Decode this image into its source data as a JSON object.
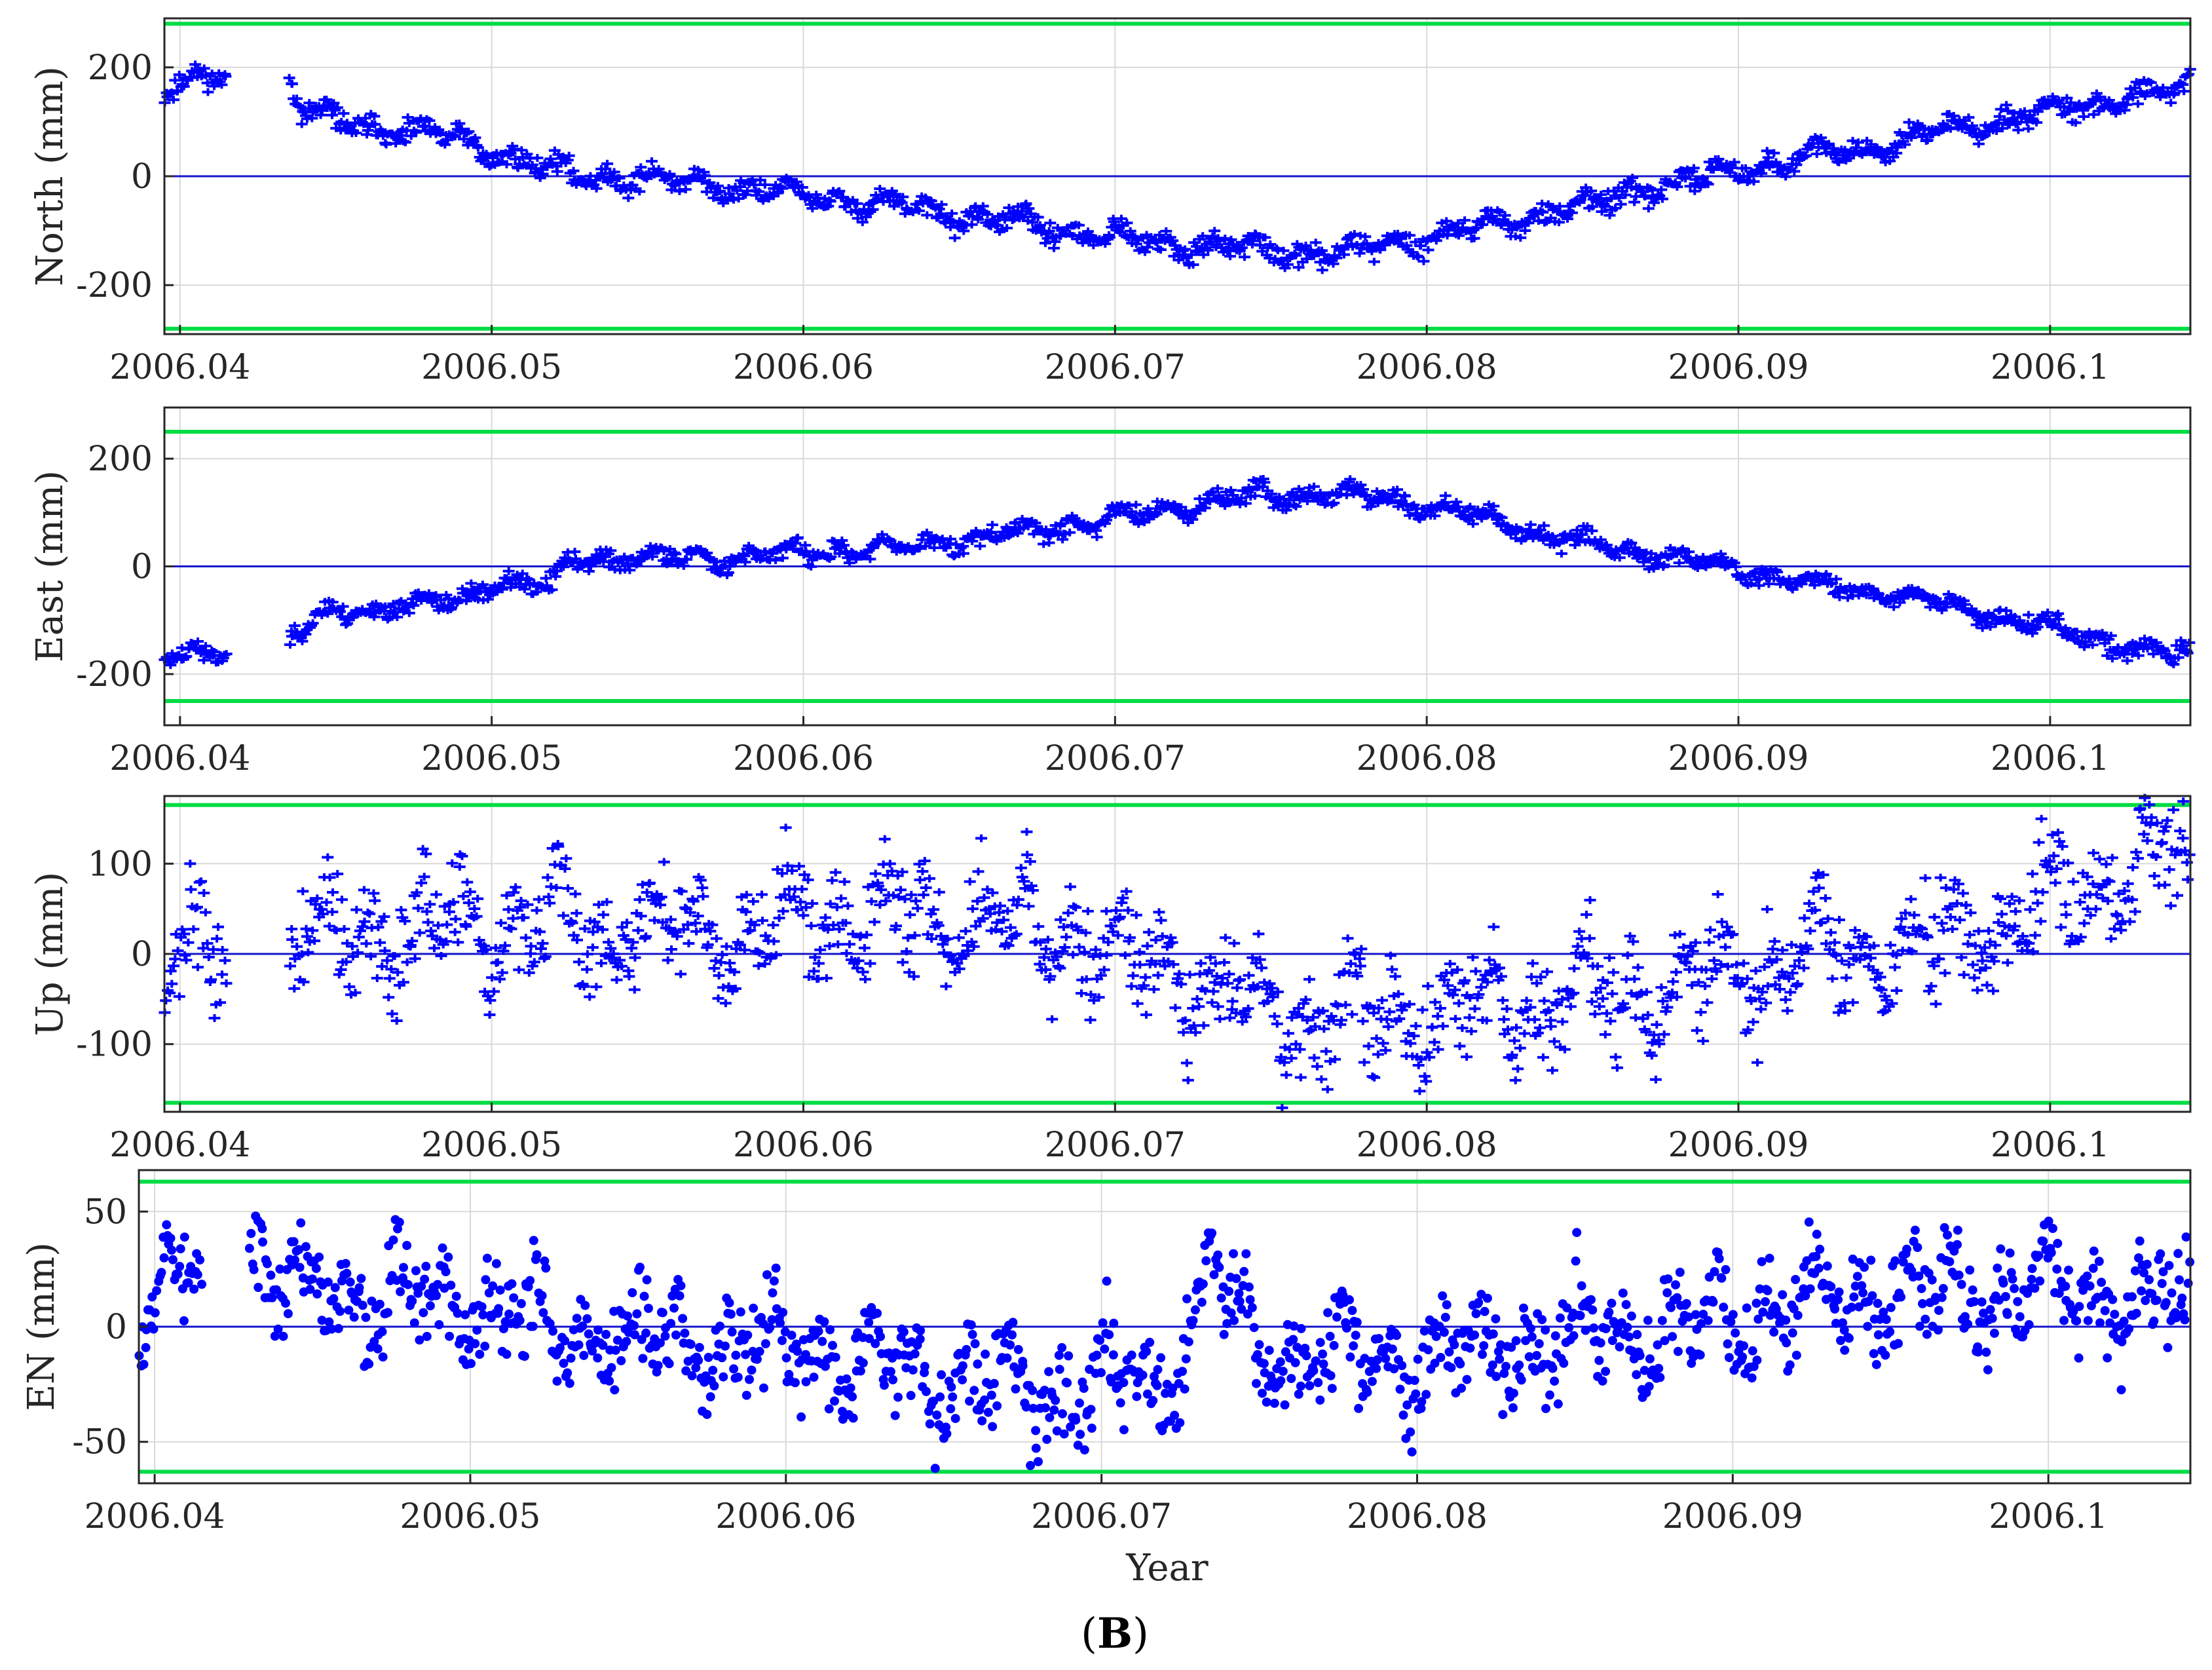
{
  "caption": {
    "open": "(",
    "letter": "B",
    "close": ")"
  },
  "colors": {
    "data": "#0000ff",
    "limit": "#00dd44",
    "zero": "#1515cc",
    "axis": "#262626",
    "grid": "#d9d9d9"
  },
  "chart_data": [
    {
      "type": "scatter",
      "title": "",
      "xlabel": "",
      "ylabel": "North (mm)",
      "xlim": [
        2006.0395,
        2006.1045
      ],
      "ylim": [
        -290,
        290
      ],
      "xticks": [
        2006.04,
        2006.05,
        2006.06,
        2006.07,
        2006.08,
        2006.09,
        2006.1
      ],
      "xtick_labels": [
        "2006.04",
        "2006.05",
        "2006.06",
        "2006.07",
        "2006.08",
        "2006.09",
        "2006.1"
      ],
      "yticks": [
        -200,
        0,
        200
      ],
      "ytick_labels": [
        "-200",
        "0",
        "200"
      ],
      "limits": [
        -280,
        280
      ],
      "zero_line": 0,
      "marker": "cross-errorbar",
      "segments": [
        [
          2006.0395,
          2006.0415
        ],
        [
          2006.0435,
          2006.1045
        ]
      ],
      "trend": [
        [
          2006.0395,
          165
        ],
        [
          2006.041,
          178
        ],
        [
          2006.0435,
          185
        ],
        [
          2006.044,
          115
        ],
        [
          2006.0455,
          98
        ],
        [
          2006.047,
          82
        ],
        [
          2006.049,
          70
        ],
        [
          2006.05,
          45
        ],
        [
          2006.0525,
          5
        ],
        [
          2006.056,
          -10
        ],
        [
          2006.06,
          -35
        ],
        [
          2006.063,
          -55
        ],
        [
          2006.067,
          -88
        ],
        [
          2006.07,
          -115
        ],
        [
          2006.0725,
          -130
        ],
        [
          2006.074,
          -128
        ],
        [
          2006.076,
          -145
        ],
        [
          2006.078,
          -132
        ],
        [
          2006.082,
          -90
        ],
        [
          2006.086,
          -40
        ],
        [
          2006.09,
          15
        ],
        [
          2006.094,
          50
        ],
        [
          2006.098,
          100
        ],
        [
          2006.102,
          140
        ],
        [
          2006.1045,
          160
        ]
      ],
      "scatter": 14,
      "seed": 11
    },
    {
      "type": "scatter",
      "title": "",
      "xlabel": "",
      "ylabel": "East (mm)",
      "xlim": [
        2006.0395,
        2006.1045
      ],
      "ylim": [
        -295,
        295
      ],
      "xticks": [
        2006.04,
        2006.05,
        2006.06,
        2006.07,
        2006.08,
        2006.09,
        2006.1
      ],
      "xtick_labels": [
        "2006.04",
        "2006.05",
        "2006.06",
        "2006.07",
        "2006.08",
        "2006.09",
        "2006.1"
      ],
      "yticks": [
        -200,
        0,
        200
      ],
      "ytick_labels": [
        "-200",
        "0",
        "200"
      ],
      "limits": [
        -250,
        250
      ],
      "zero_line": 0,
      "marker": "cross-errorbar",
      "segments": [
        [
          2006.0395,
          2006.0415
        ],
        [
          2006.0435,
          2006.1045
        ]
      ],
      "trend": [
        [
          2006.0395,
          -160
        ],
        [
          2006.041,
          -170
        ],
        [
          2006.0435,
          -130
        ],
        [
          2006.0445,
          -95
        ],
        [
          2006.047,
          -70
        ],
        [
          2006.049,
          -70
        ],
        [
          2006.05,
          -25
        ],
        [
          2006.052,
          -40
        ],
        [
          2006.0525,
          15
        ],
        [
          2006.055,
          15
        ],
        [
          2006.058,
          20
        ],
        [
          2006.06,
          25
        ],
        [
          2006.063,
          35
        ],
        [
          2006.066,
          55
        ],
        [
          2006.069,
          80
        ],
        [
          2006.0715,
          105
        ],
        [
          2006.074,
          130
        ],
        [
          2006.077,
          135
        ],
        [
          2006.08,
          115
        ],
        [
          2006.083,
          70
        ],
        [
          2006.0865,
          30
        ],
        [
          2006.0885,
          10
        ],
        [
          2006.092,
          -30
        ],
        [
          2006.096,
          -60
        ],
        [
          2006.1,
          -115
        ],
        [
          2006.1045,
          -170
        ]
      ],
      "scatter": 12,
      "seed": 23
    },
    {
      "type": "scatter",
      "title": "",
      "xlabel": "",
      "ylabel": "Up (mm)",
      "xlim": [
        2006.0395,
        2006.1045
      ],
      "ylim": [
        -175,
        175
      ],
      "xticks": [
        2006.04,
        2006.05,
        2006.06,
        2006.07,
        2006.08,
        2006.09,
        2006.1
      ],
      "xtick_labels": [
        "2006.04",
        "2006.05",
        "2006.06",
        "2006.07",
        "2006.08",
        "2006.09",
        "2006.1"
      ],
      "yticks": [
        -100,
        0,
        100
      ],
      "ytick_labels": [
        "-100",
        "0",
        "100"
      ],
      "limits": [
        -165,
        165
      ],
      "zero_line": 0,
      "marker": "cross-errorbar",
      "segments": [
        [
          2006.0395,
          2006.0415
        ],
        [
          2006.0435,
          2006.1045
        ]
      ],
      "trend": [
        [
          2006.0395,
          10
        ],
        [
          2006.041,
          -10
        ],
        [
          2006.0435,
          15
        ],
        [
          2006.047,
          20
        ],
        [
          2006.05,
          25
        ],
        [
          2006.054,
          30
        ],
        [
          2006.058,
          35
        ],
        [
          2006.062,
          40
        ],
        [
          2006.066,
          45
        ],
        [
          2006.07,
          5
        ],
        [
          2006.073,
          -40
        ],
        [
          2006.076,
          -65
        ],
        [
          2006.079,
          -70
        ],
        [
          2006.082,
          -60
        ],
        [
          2006.086,
          -45
        ],
        [
          2006.09,
          -20
        ],
        [
          2006.094,
          0
        ],
        [
          2006.098,
          25
        ],
        [
          2006.1,
          55
        ],
        [
          2006.1045,
          115
        ]
      ],
      "scatter": 38,
      "seed": 37
    },
    {
      "type": "scatter",
      "title": "",
      "xlabel": "Year",
      "ylabel": "EN (mm)",
      "xlim": [
        2006.0395,
        2006.1045
      ],
      "ylim": [
        -68,
        68
      ],
      "xticks": [
        2006.04,
        2006.05,
        2006.06,
        2006.07,
        2006.08,
        2006.09,
        2006.1
      ],
      "xtick_labels": [
        "2006.04",
        "2006.05",
        "2006.06",
        "2006.07",
        "2006.08",
        "2006.09",
        "2006.1"
      ],
      "yticks": [
        -50,
        0,
        50
      ],
      "ytick_labels": [
        "-50",
        "0",
        "50"
      ],
      "limits": [
        -63,
        63
      ],
      "zero_line": 0,
      "marker": "dot",
      "segments": [
        [
          2006.0395,
          2006.0415
        ],
        [
          2006.043,
          2006.1045
        ]
      ],
      "trend": [
        [
          2006.0395,
          15
        ],
        [
          2006.041,
          20
        ],
        [
          2006.043,
          30
        ],
        [
          2006.0445,
          15
        ],
        [
          2006.048,
          15
        ],
        [
          2006.051,
          5
        ],
        [
          2006.055,
          -5
        ],
        [
          2006.06,
          -10
        ],
        [
          2006.065,
          -20
        ],
        [
          2006.068,
          -25
        ],
        [
          2006.072,
          -25
        ],
        [
          2006.0735,
          30
        ],
        [
          2006.075,
          -10
        ],
        [
          2006.08,
          -15
        ],
        [
          2006.085,
          -5
        ],
        [
          2006.09,
          5
        ],
        [
          2006.095,
          15
        ],
        [
          2006.1,
          15
        ],
        [
          2006.1045,
          5
        ]
      ],
      "scatter": 14,
      "seed": 53
    }
  ]
}
